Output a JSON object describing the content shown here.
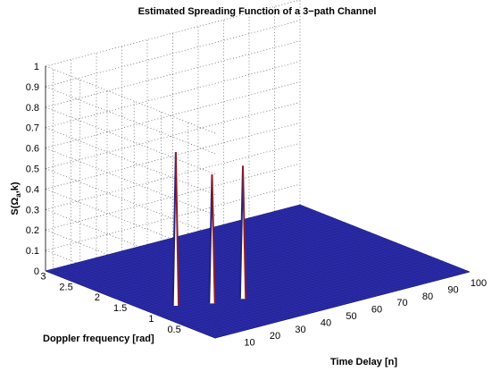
{
  "chart_data": {
    "type": "surface",
    "title": "Estimated Spreading Function of a 3−path Channel",
    "xlabel": "Time Delay [n]",
    "ylabel": "Doppler frequency [rad]",
    "zlabel_base": "S(Ω",
    "zlabel_sub": "a",
    "zlabel_tail": ",k)",
    "x_ticks": [
      "10",
      "20",
      "30",
      "40",
      "50",
      "60",
      "70",
      "80",
      "90",
      "100"
    ],
    "y_ticks": [
      "0.5",
      "1",
      "1.5",
      "2",
      "2.5",
      "3"
    ],
    "z_ticks": [
      "0",
      "0.1",
      "0.2",
      "0.3",
      "0.4",
      "0.5",
      "0.6",
      "0.7",
      "0.8",
      "0.9",
      "1"
    ],
    "xlim": [
      0,
      100
    ],
    "ylim": [
      0,
      3.14
    ],
    "zlim": [
      0,
      1
    ],
    "grid": true,
    "surface_color": "#2b2ba8",
    "peaks": [
      {
        "delay": 10,
        "doppler": 1.2,
        "value": 0.75
      },
      {
        "delay": 20,
        "doppler": 1.0,
        "value": 0.63
      },
      {
        "delay": 30,
        "doppler": 0.9,
        "value": 0.65
      }
    ]
  }
}
